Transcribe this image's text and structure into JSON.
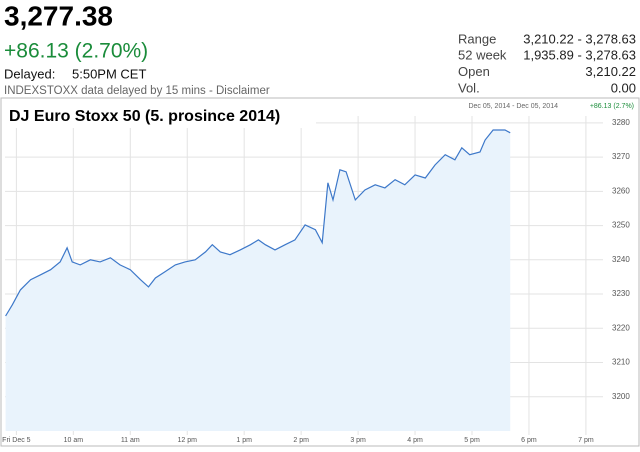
{
  "quote": {
    "price": "3,277.38",
    "change": "+86.13 (2.70%)",
    "delayed_label": "Delayed:",
    "delayed_time": "5:50PM CET",
    "disclaimer": "INDEXSTOXX data delayed by 15 mins - Disclaimer",
    "stats": [
      {
        "label": "Range",
        "value": "3,210.22 - 3,278.63"
      },
      {
        "label": "52 week",
        "value": "1,935.89 - 3,278.63"
      },
      {
        "label": "Open",
        "value": "3,210.22"
      },
      {
        "label": "Vol.",
        "value": "0.00"
      }
    ]
  },
  "chart_data": {
    "type": "line",
    "title": "DJ Euro Stoxx 50 (5. prosince 2014)",
    "date_range": "Dec 05, 2014 - Dec 05, 2014",
    "range_change": "+86.13 (2.7%)",
    "x": [
      8.81,
      8.93,
      9.07,
      9.25,
      9.42,
      9.6,
      9.77,
      9.89,
      9.98,
      10.12,
      10.3,
      10.47,
      10.65,
      10.82,
      11.0,
      11.18,
      11.32,
      11.44,
      11.61,
      11.79,
      11.96,
      12.14,
      12.32,
      12.44,
      12.58,
      12.75,
      12.93,
      13.11,
      13.25,
      13.37,
      13.54,
      13.72,
      13.89,
      14.07,
      14.25,
      14.37,
      14.47,
      14.56,
      14.68,
      14.79,
      14.95,
      15.12,
      15.3,
      15.47,
      15.65,
      15.82,
      16.0,
      16.18,
      16.35,
      16.53,
      16.7,
      16.82,
      16.96,
      17.14,
      17.23,
      17.37,
      17.58,
      17.67
    ],
    "values": [
      3223.6,
      3226.9,
      3231.2,
      3234.2,
      3235.6,
      3237.1,
      3239.4,
      3243.5,
      3239.4,
      3238.5,
      3240,
      3239.4,
      3240.6,
      3238.5,
      3237.1,
      3234.2,
      3232.1,
      3234.7,
      3236.5,
      3238.5,
      3239.4,
      3240,
      3242.3,
      3244.4,
      3242.3,
      3241.5,
      3242.9,
      3244.4,
      3245.8,
      3244.4,
      3242.9,
      3244.4,
      3245.8,
      3250.2,
      3248.8,
      3245,
      3262.5,
      3257.5,
      3266.3,
      3265.7,
      3257.5,
      3260.4,
      3261.9,
      3261,
      3263.4,
      3261.9,
      3264.8,
      3263.9,
      3267.7,
      3270.7,
      3269.2,
      3272.7,
      3270.7,
      3271.5,
      3275,
      3277.9,
      3277.9,
      3277.1
    ],
    "color": "#3d78c9",
    "fill": "#e9f3fc",
    "xlim": [
      8.8,
      19.3
    ],
    "ylim": [
      3190,
      3282
    ],
    "xticks": [
      {
        "value": 9,
        "label": "Fri Dec 5"
      },
      {
        "value": 10,
        "label": "10 am"
      },
      {
        "value": 11,
        "label": "11 am"
      },
      {
        "value": 12,
        "label": "12 pm"
      },
      {
        "value": 13,
        "label": "1 pm"
      },
      {
        "value": 14,
        "label": "2 pm"
      },
      {
        "value": 15,
        "label": "3 pm"
      },
      {
        "value": 16,
        "label": "4 pm"
      },
      {
        "value": 17,
        "label": "5 pm"
      },
      {
        "value": 18,
        "label": "6 pm"
      },
      {
        "value": 19,
        "label": "7 pm"
      }
    ],
    "yticks": [
      3200,
      3210,
      3220,
      3230,
      3240,
      3250,
      3260,
      3270,
      3280
    ],
    "grid": true
  }
}
